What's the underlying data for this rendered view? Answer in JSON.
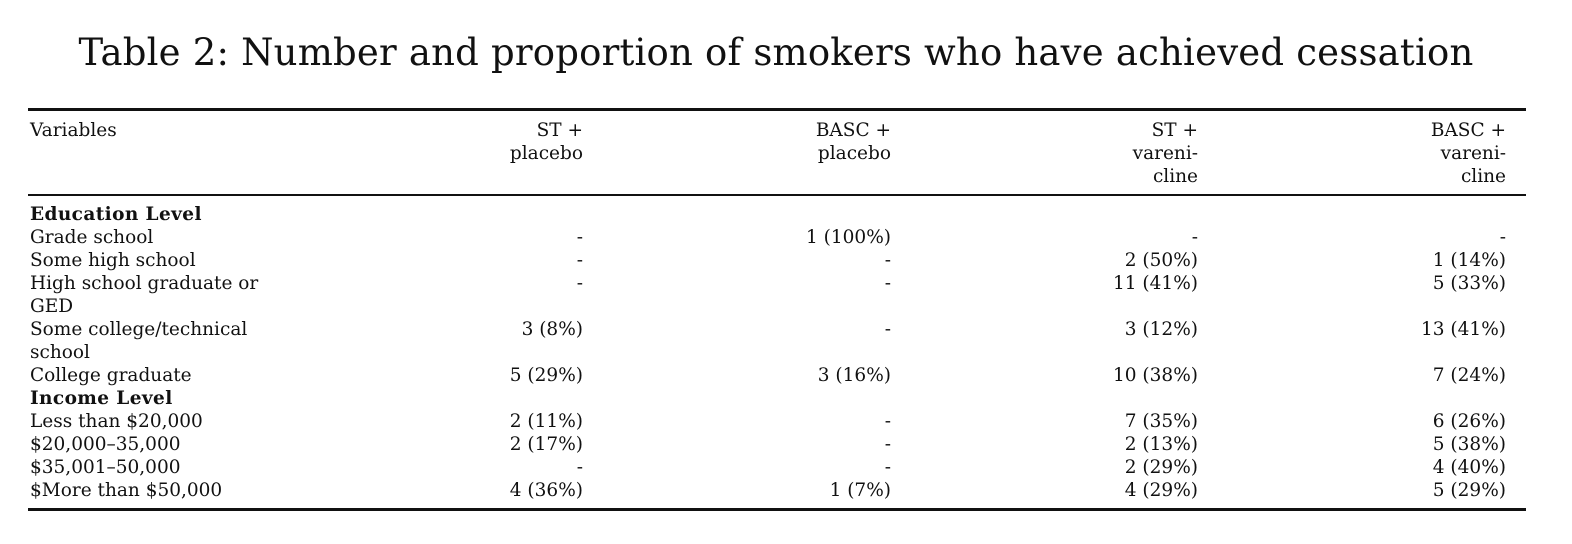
{
  "caption": "Table 2: Number and proportion of smokers who have achieved cessation",
  "header": {
    "variables": "Variables",
    "col1": [
      "ST +",
      "placebo"
    ],
    "col2": [
      "BASC +",
      "placebo"
    ],
    "col3": [
      "ST +",
      "vareni-",
      "cline"
    ],
    "col4": [
      "BASC +",
      "vareni-",
      "cline"
    ]
  },
  "groups": {
    "education": "Education Level",
    "income": "Income Level"
  },
  "rows": [
    {
      "label": [
        "Grade school"
      ],
      "values": [
        "-",
        "1 (100%)",
        "-",
        "-"
      ]
    },
    {
      "label": [
        "Some high school"
      ],
      "values": [
        "-",
        "-",
        "2 (50%)",
        "1 (14%)"
      ]
    },
    {
      "label": [
        "High school graduate or",
        "GED"
      ],
      "values": [
        "-",
        "-",
        "11 (41%)",
        "5 (33%)"
      ]
    },
    {
      "label": [
        "Some college/technical",
        "school"
      ],
      "values": [
        "3 (8%)",
        "-",
        "3 (12%)",
        "13 (41%)"
      ]
    },
    {
      "label": [
        "College graduate"
      ],
      "values": [
        "5 (29%)",
        "3 (16%)",
        "10 (38%)",
        "7 (24%)"
      ]
    },
    {
      "label": [
        "Less than $20,000"
      ],
      "values": [
        "2 (11%)",
        "-",
        "7 (35%)",
        "6 (26%)"
      ]
    },
    {
      "label": [
        "$20,000–35,000"
      ],
      "values": [
        "2 (17%)",
        "-",
        "2 (13%)",
        "5 (38%)"
      ]
    },
    {
      "label": [
        "$35,001–50,000"
      ],
      "values": [
        "-",
        "-",
        "2 (29%)",
        "4 (40%)"
      ]
    },
    {
      "label": [
        "$More than $50,000"
      ],
      "values": [
        "4 (36%)",
        "1 (7%)",
        "4 (29%)",
        "5 (29%)"
      ]
    }
  ]
}
